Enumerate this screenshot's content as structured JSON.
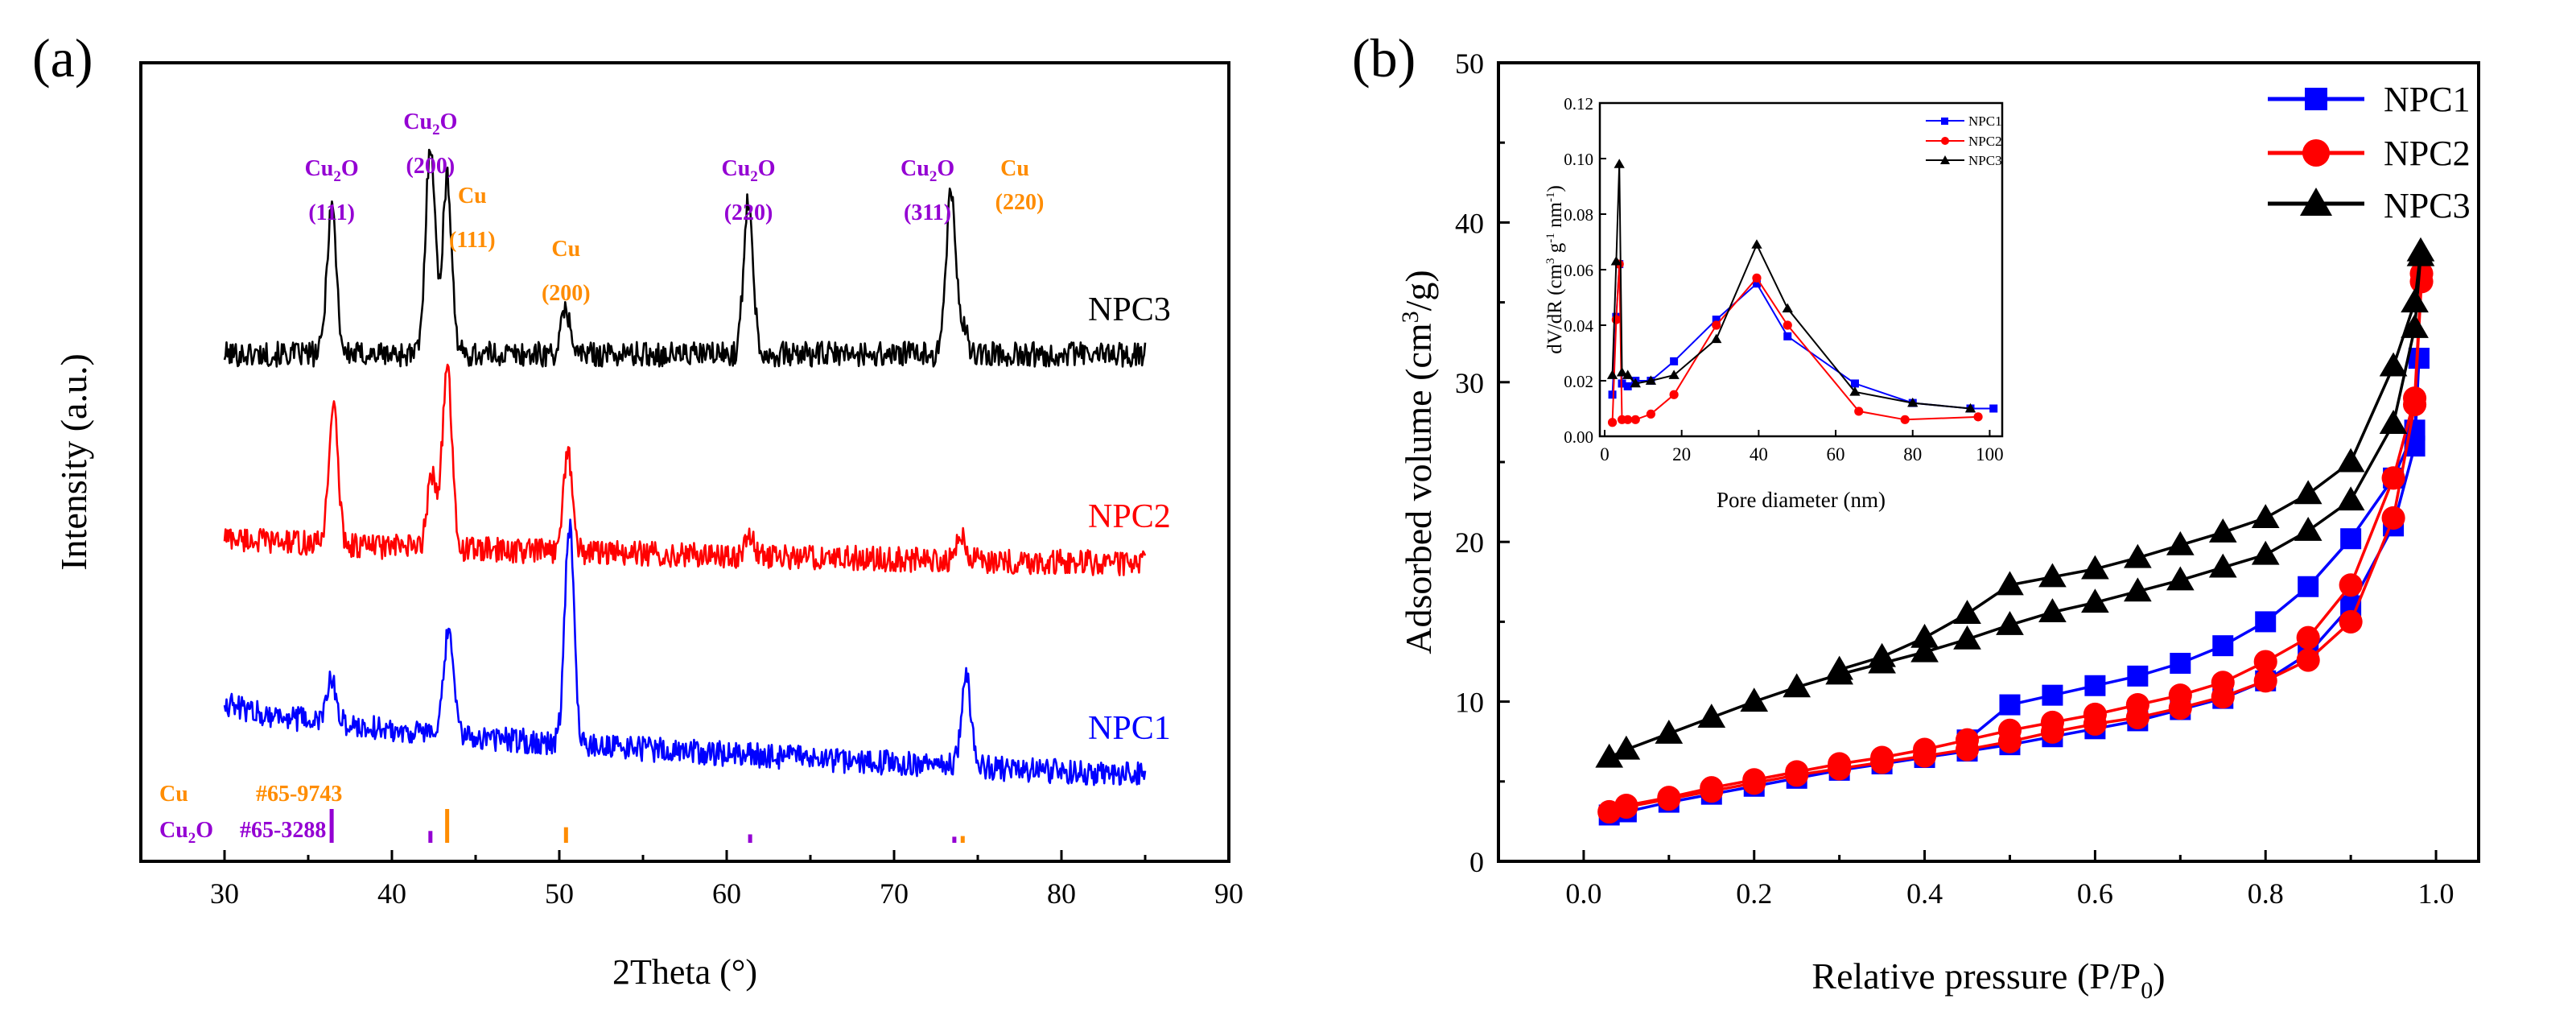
{
  "chart_data": [
    {
      "panel_label": "(a)",
      "type": "line",
      "title": "",
      "xlabel": "2Theta (°)",
      "ylabel": "Intensity (a.u.)",
      "xlim": [
        25,
        90
      ],
      "xticks": [
        "30",
        "40",
        "50",
        "60",
        "70",
        "80",
        "90"
      ],
      "series": [
        {
          "name": "NPC3",
          "color": "#000000",
          "x_range": [
            30,
            85
          ],
          "baseline_start": 0.0,
          "baseline_end": 0.0,
          "noise": 1.0,
          "offset": 3,
          "peaks": [
            {
              "x": 36.4,
              "h": 12
            },
            {
              "x": 42.3,
              "h": 17
            },
            {
              "x": 43.3,
              "h": 14
            },
            {
              "x": 50.4,
              "h": 3.5
            },
            {
              "x": 61.3,
              "h": 12.5
            },
            {
              "x": 73.4,
              "h": 13
            },
            {
              "x": 74.1,
              "h": 2
            }
          ]
        },
        {
          "name": "NPC2",
          "color": "#ff0000",
          "x_range": [
            30,
            85
          ],
          "baseline_start": 2.2,
          "baseline_end": 0.0,
          "noise": 1.0,
          "offset": 2,
          "peaks": [
            {
              "x": 36.5,
              "h": 11
            },
            {
              "x": 42.4,
              "h": 6
            },
            {
              "x": 43.3,
              "h": 14.5
            },
            {
              "x": 50.5,
              "h": 8
            },
            {
              "x": 61.4,
              "h": 1.5
            },
            {
              "x": 74.0,
              "h": 2
            }
          ]
        },
        {
          "name": "NPC1",
          "color": "#0000ff",
          "x_range": [
            30,
            85
          ],
          "baseline_start": 6.0,
          "baseline_end": 0.0,
          "noise": 1.0,
          "offset": 1,
          "peaks": [
            {
              "x": 36.4,
              "h": 3.5
            },
            {
              "x": 43.4,
              "h": 8.5
            },
            {
              "x": 50.6,
              "h": 17.5
            },
            {
              "x": 74.3,
              "h": 7.5
            }
          ]
        }
      ],
      "reference_patterns": {
        "Cu": {
          "label": "Cu",
          "card": "#65-9743",
          "color": "#ff8c00",
          "lines": [
            {
              "x": 43.3,
              "h": 100
            },
            {
              "x": 50.4,
              "h": 46
            },
            {
              "x": 74.1,
              "h": 20
            }
          ]
        },
        "Cu2O": {
          "label": "Cu",
          "sub": "2",
          "suffix": "O",
          "card": "#65-3288",
          "color": "#9400d3",
          "lines": [
            {
              "x": 36.4,
              "h": 100
            },
            {
              "x": 42.3,
              "h": 35
            },
            {
              "x": 61.4,
              "h": 25
            },
            {
              "x": 73.6,
              "h": 18
            }
          ]
        }
      },
      "annotations": [
        {
          "x": 36.4,
          "row": 0,
          "chem": "Cu",
          "sub": "2",
          "suffix": "O",
          "hkl": "(111)",
          "color": "#9400d3"
        },
        {
          "x": 42.3,
          "row": -1,
          "chem": "Cu",
          "sub": "2",
          "suffix": "O",
          "hkl": "(200)",
          "color": "#9400d3"
        },
        {
          "x": 44.8,
          "row": 1,
          "chem": "Cu",
          "sub": "",
          "suffix": "",
          "hkl": "(111)",
          "color": "#ff8c00"
        },
        {
          "x": 50.4,
          "row": 2,
          "chem": "Cu",
          "sub": "",
          "suffix": "",
          "hkl": "(200)",
          "color": "#ff8c00"
        },
        {
          "x": 61.3,
          "row": 0,
          "chem": "Cu",
          "sub": "2",
          "suffix": "O",
          "hkl": "(220)",
          "color": "#9400d3"
        },
        {
          "x": 72.0,
          "row": 0,
          "chem": "Cu",
          "sub": "2",
          "suffix": "O",
          "hkl": "(311)",
          "color": "#9400d3"
        },
        {
          "x": 77.5,
          "row": 0,
          "chem": "Cu",
          "sub": "",
          "suffix": "",
          "hkl": "(220)",
          "color": "#ff8c00",
          "inline": true
        }
      ]
    },
    {
      "panel_label": "(b)",
      "type": "line",
      "title": "",
      "xlabel": "Relative pressure (P/P",
      "xlabel_sub": "0",
      "xlabel_end": ")",
      "ylabel": "Adsorbed volume (cm",
      "ylabel_sup": "3",
      "ylabel_end": "/g)",
      "xlim": [
        -0.1,
        1.05
      ],
      "ylim": [
        0,
        50
      ],
      "xticks": [
        "0.0",
        "0.2",
        "0.4",
        "0.6",
        "0.8",
        "1.0"
      ],
      "yticks": [
        "0",
        "10",
        "20",
        "30",
        "40",
        "50"
      ],
      "legend_position": "top-right",
      "series": [
        {
          "name": "NPC1",
          "color": "#0000ff",
          "marker": "square",
          "adsorption": {
            "x": [
              0.03,
              0.05,
              0.1,
              0.15,
              0.2,
              0.25,
              0.3,
              0.35,
              0.4,
              0.45,
              0.5,
              0.55,
              0.6,
              0.65,
              0.7,
              0.75,
              0.8,
              0.85,
              0.9,
              0.95,
              0.975,
              0.98
            ],
            "y": [
              2.9,
              3.1,
              3.7,
              4.2,
              4.7,
              5.2,
              5.7,
              6.1,
              6.5,
              6.9,
              7.3,
              7.8,
              8.3,
              8.8,
              9.5,
              10.2,
              11.3,
              13.0,
              16.0,
              21.0,
              26.0,
              31.5
            ]
          },
          "desorption": {
            "x": [
              0.98,
              0.975,
              0.95,
              0.9,
              0.85,
              0.8,
              0.75,
              0.7,
              0.65,
              0.6,
              0.55,
              0.5,
              0.45
            ],
            "y": [
              31.5,
              27.0,
              24.0,
              20.2,
              17.2,
              15.0,
              13.5,
              12.4,
              11.6,
              11.0,
              10.4,
              9.8,
              7.6
            ]
          }
        },
        {
          "name": "NPC2",
          "color": "#ff0000",
          "marker": "circle",
          "adsorption": {
            "x": [
              0.03,
              0.05,
              0.1,
              0.15,
              0.2,
              0.25,
              0.3,
              0.35,
              0.4,
              0.45,
              0.5,
              0.55,
              0.6,
              0.65,
              0.7,
              0.75,
              0.8,
              0.85,
              0.9,
              0.95,
              0.975,
              0.983
            ],
            "y": [
              3.1,
              3.4,
              3.9,
              4.4,
              4.9,
              5.4,
              5.8,
              6.2,
              6.6,
              7.0,
              7.5,
              8.1,
              8.6,
              9.0,
              9.6,
              10.3,
              11.3,
              12.6,
              15.0,
              21.5,
              28.6,
              36.3
            ]
          },
          "desorption": {
            "x": [
              0.983,
              0.975,
              0.95,
              0.9,
              0.85,
              0.8,
              0.75,
              0.7,
              0.65,
              0.6,
              0.55,
              0.5,
              0.45,
              0.4,
              0.35,
              0.3,
              0.25,
              0.2,
              0.15,
              0.1,
              0.05
            ],
            "y": [
              36.8,
              29.0,
              24.0,
              17.3,
              14.0,
              12.5,
              11.2,
              10.4,
              9.8,
              9.2,
              8.7,
              8.2,
              7.6,
              7.0,
              6.5,
              6.1,
              5.6,
              5.1,
              4.6,
              4.0,
              3.5
            ]
          }
        },
        {
          "name": "NPC3",
          "color": "#000000",
          "marker": "triangle",
          "adsorption": {
            "x": [
              0.03,
              0.05,
              0.1,
              0.15,
              0.2,
              0.25,
              0.3,
              0.35,
              0.4,
              0.45,
              0.5,
              0.55,
              0.6,
              0.65,
              0.7,
              0.75,
              0.8,
              0.85,
              0.9,
              0.95,
              0.975,
              0.982
            ],
            "y": [
              6.5,
              7.0,
              8.0,
              9.0,
              10.0,
              10.9,
              11.7,
              12.4,
              13.1,
              13.9,
              14.8,
              15.6,
              16.2,
              16.9,
              17.6,
              18.4,
              19.2,
              20.7,
              22.6,
              27.4,
              33.4,
              37.9
            ]
          },
          "desorption": {
            "x": [
              0.982,
              0.975,
              0.95,
              0.9,
              0.85,
              0.8,
              0.75,
              0.7,
              0.65,
              0.6,
              0.55,
              0.5,
              0.45,
              0.4,
              0.35,
              0.3
            ],
            "y": [
              38.2,
              35.0,
              31.0,
              25.0,
              23.0,
              21.5,
              20.6,
              19.8,
              19.0,
              18.3,
              17.8,
              17.3,
              15.5,
              14.0,
              12.8,
              12.0
            ]
          }
        }
      ],
      "inset": {
        "xlabel": "Pore diameter (nm)",
        "ylabel": "dV/dR (cm",
        "ylabel_sup1": "3",
        "ylabel_mid": "g",
        "ylabel_sup2": "-1",
        "ylabel_mid2": "nm",
        "ylabel_sup3": "-1",
        "ylabel_end": ")",
        "xlim": [
          0,
          102
        ],
        "ylim": [
          0,
          0.12
        ],
        "xticks": [
          "0",
          "20",
          "40",
          "60",
          "80",
          "100"
        ],
        "yticks": [
          "0.00",
          "0.02",
          "0.04",
          "0.06",
          "0.08",
          "0.10",
          "0.12"
        ],
        "legend_position": "top-right",
        "series": [
          {
            "name": "NPC1",
            "color": "#0000ff",
            "marker": "square",
            "x": [
              2.0,
              3.0,
              3.8,
              4.5,
              6.0,
              8.0,
              12.0,
              18.0,
              29.0,
              39.5,
              47.5,
              65.0,
              80.0,
              95.0,
              101.0
            ],
            "y": [
              0.015,
              0.043,
              0.062,
              0.019,
              0.018,
              0.02,
              0.02,
              0.027,
              0.042,
              0.055,
              0.036,
              0.019,
              0.012,
              0.01,
              0.01
            ]
          },
          {
            "name": "NPC2",
            "color": "#ff0000",
            "marker": "circle",
            "x": [
              2.0,
              3.0,
              3.8,
              4.5,
              6.0,
              8.0,
              12.0,
              18.0,
              29.0,
              39.5,
              47.5,
              66.0,
              78.0,
              97.0
            ],
            "y": [
              0.005,
              0.042,
              0.062,
              0.006,
              0.006,
              0.006,
              0.008,
              0.015,
              0.04,
              0.057,
              0.04,
              0.009,
              0.006,
              0.007
            ]
          },
          {
            "name": "NPC3",
            "color": "#000000",
            "marker": "triangle",
            "x": [
              2.0,
              3.0,
              3.8,
              4.5,
              6.0,
              8.0,
              12.0,
              18.0,
              29.0,
              39.5,
              47.5,
              65.0,
              80.0,
              95.0
            ],
            "y": [
              0.022,
              0.063,
              0.098,
              0.023,
              0.022,
              0.019,
              0.02,
              0.022,
              0.035,
              0.069,
              0.046,
              0.016,
              0.012,
              0.01
            ]
          }
        ]
      }
    }
  ]
}
